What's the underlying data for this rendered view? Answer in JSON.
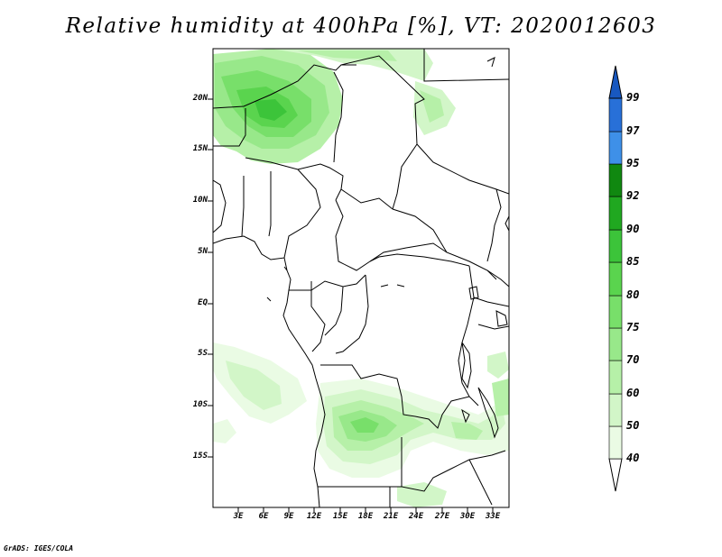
{
  "title": "Relative humidity at 400hPa [%], VT: 2020012603",
  "footer": "GrADS: IGES/COLA",
  "map": {
    "lat_labels": [
      "20N",
      "15N",
      "10N",
      "5N",
      "EQ",
      "5S",
      "10S",
      "15S"
    ],
    "lon_labels": [
      "3E",
      "6E",
      "9E",
      "12E",
      "15E",
      "18E",
      "21E",
      "24E",
      "27E",
      "30E",
      "33E"
    ]
  },
  "colorbar": {
    "labels": [
      "40",
      "50",
      "60",
      "70",
      "75",
      "80",
      "85",
      "90",
      "92",
      "95",
      "97",
      "99"
    ],
    "colors": [
      "#ffffff",
      "#eafbe4",
      "#d2f6c8",
      "#b6f0a8",
      "#98e88a",
      "#78df6a",
      "#5ad44e",
      "#3cc43a",
      "#20a820",
      "#108810",
      "#3e90e8",
      "#2870d8",
      "#1858c0"
    ]
  }
}
